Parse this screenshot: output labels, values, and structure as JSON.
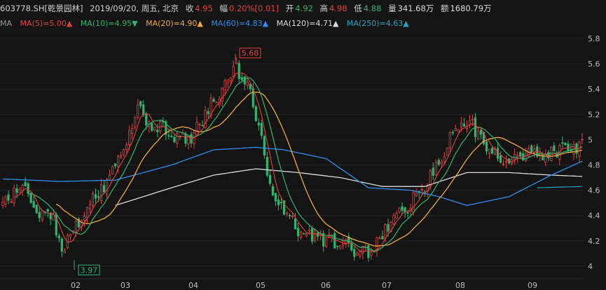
{
  "header": {
    "symbol": "603778.SH[乾景园林]",
    "date": "2019/09/20, 周五, 北京",
    "close_label": "收",
    "close": "4.95",
    "chg_label": "幅",
    "chg_pct": "0.20%",
    "chg_abs": "[0.01]",
    "open_label": "开",
    "open": "4.92",
    "high_label": "高",
    "high": "4.98",
    "low_label": "低",
    "low": "4.88",
    "vol_label": "量",
    "vol": "341.68万",
    "amt_label": "额",
    "amt": "1680.79万"
  },
  "ma_legend": {
    "title": "MA",
    "items": [
      {
        "label": "MA(5)=5.00",
        "arrow": "up",
        "color": "#e0413f"
      },
      {
        "label": "MA(10)=4.95",
        "arrow": "down",
        "color": "#2fb56d"
      },
      {
        "label": "MA(20)=4.90",
        "arrow": "up",
        "color": "#f0a93a"
      },
      {
        "label": "MA(60)=4.83",
        "arrow": "up",
        "color": "#2f8ef0"
      },
      {
        "label": "MA(120)=4.71",
        "arrow": "up",
        "color": "#dcdcdc"
      },
      {
        "label": "MA(250)=4.63",
        "arrow": "up",
        "color": "#25a7c2"
      }
    ]
  },
  "chart_data": {
    "type": "candlestick",
    "ylim": [
      3.9,
      5.85
    ],
    "yticks": [
      "5.8",
      "5.6",
      "5.4",
      "5.2",
      "5",
      "4.8",
      "4.6",
      "4.4",
      "4.2",
      "4"
    ],
    "x_labels": [
      "02",
      "03",
      "04",
      "05",
      "06",
      "07",
      "08",
      "09"
    ],
    "annotations": [
      {
        "text": "5.68"
      },
      {
        "text": "3.97"
      }
    ],
    "colors": {
      "up": "#e0413f",
      "down": "#2fb56d",
      "ma5": "#e0413f",
      "ma10": "#2fb56d",
      "ma20": "#f0a93a",
      "ma60": "#2f8ef0",
      "ma120": "#dcdcdc",
      "ma250": "#25a7c2"
    },
    "anchors": [
      [
        0,
        4.5
      ],
      [
        7,
        4.62
      ],
      [
        12,
        4.44
      ],
      [
        18,
        4.35
      ],
      [
        21,
        4.1
      ],
      [
        27,
        4.35
      ],
      [
        32,
        4.56
      ],
      [
        36,
        4.62
      ],
      [
        40,
        4.78
      ],
      [
        44,
        4.95
      ],
      [
        48,
        5.3
      ],
      [
        52,
        5.1
      ],
      [
        58,
        5.08
      ],
      [
        62,
        5.02
      ],
      [
        67,
        5.0
      ],
      [
        73,
        5.25
      ],
      [
        78,
        5.4
      ],
      [
        83,
        5.56
      ],
      [
        88,
        5.4
      ],
      [
        92,
        5.0
      ],
      [
        96,
        4.55
      ],
      [
        100,
        4.45
      ],
      [
        104,
        4.3
      ],
      [
        108,
        4.25
      ],
      [
        113,
        4.22
      ],
      [
        118,
        4.18
      ],
      [
        122,
        4.22
      ],
      [
        126,
        4.1
      ],
      [
        131,
        4.12
      ],
      [
        136,
        4.28
      ],
      [
        140,
        4.4
      ],
      [
        145,
        4.5
      ],
      [
        150,
        4.62
      ],
      [
        156,
        4.85
      ],
      [
        161,
        5.1
      ],
      [
        166,
        5.15
      ],
      [
        170,
        5.0
      ],
      [
        174,
        4.9
      ],
      [
        178,
        4.8
      ],
      [
        183,
        4.85
      ],
      [
        188,
        4.9
      ],
      [
        192,
        4.85
      ],
      [
        197,
        4.9
      ],
      [
        200,
        4.95
      ],
      [
        203,
        4.92
      ],
      [
        206,
        4.95
      ]
    ],
    "ma60_anchors": [
      [
        0,
        4.69
      ],
      [
        20,
        4.67
      ],
      [
        40,
        4.68
      ],
      [
        60,
        4.8
      ],
      [
        75,
        4.92
      ],
      [
        90,
        4.94
      ],
      [
        100,
        4.92
      ],
      [
        115,
        4.85
      ],
      [
        130,
        4.62
      ],
      [
        145,
        4.6
      ],
      [
        155,
        4.55
      ],
      [
        165,
        4.48
      ],
      [
        180,
        4.55
      ],
      [
        195,
        4.72
      ],
      [
        206,
        4.83
      ]
    ],
    "ma120_anchors": [
      [
        40,
        4.48
      ],
      [
        60,
        4.62
      ],
      [
        75,
        4.72
      ],
      [
        90,
        4.77
      ],
      [
        105,
        4.74
      ],
      [
        120,
        4.7
      ],
      [
        135,
        4.63
      ],
      [
        150,
        4.63
      ],
      [
        165,
        4.74
      ],
      [
        180,
        4.74
      ],
      [
        195,
        4.72
      ],
      [
        206,
        4.71
      ]
    ],
    "ma250_anchors": [
      [
        190,
        4.62
      ],
      [
        206,
        4.63
      ]
    ],
    "n": 207
  }
}
